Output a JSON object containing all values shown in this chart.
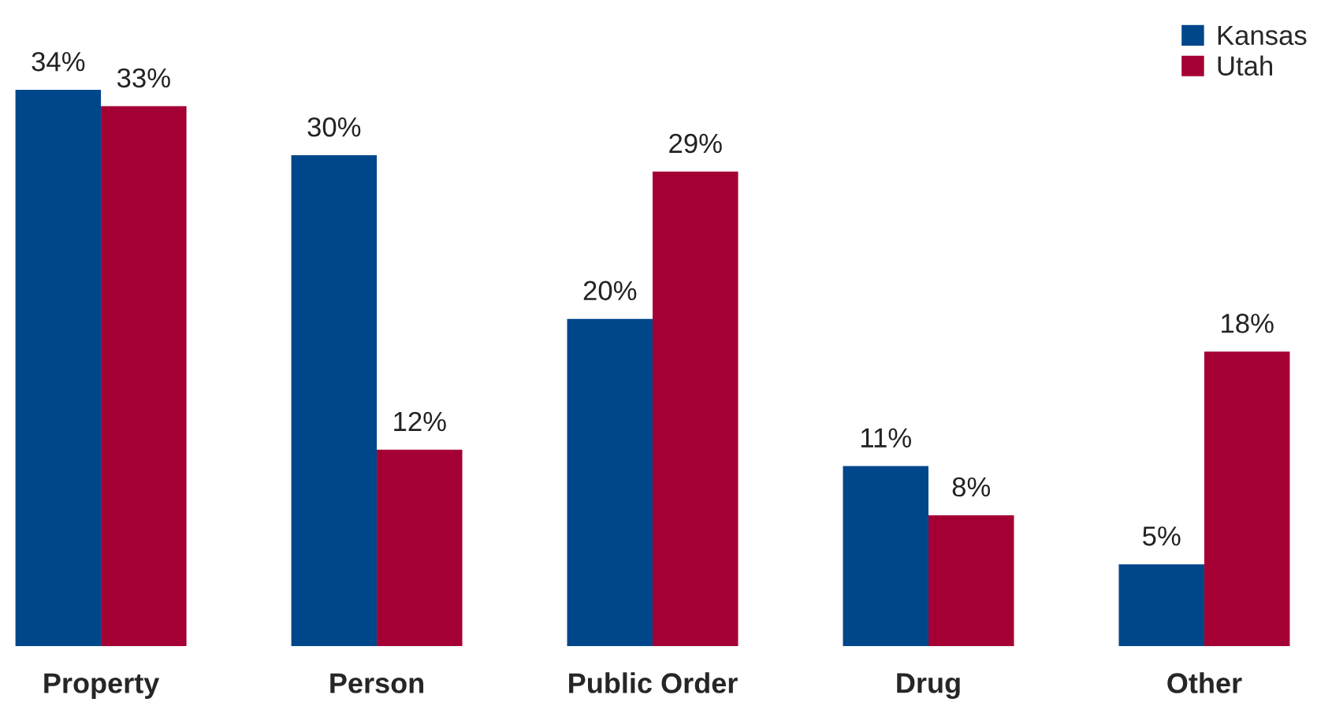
{
  "chart_data": {
    "type": "bar",
    "categories": [
      "Property",
      "Person",
      "Public Order",
      "Drug",
      "Other"
    ],
    "series": [
      {
        "name": "Kansas",
        "color": "#00468b",
        "values": [
          34,
          30,
          20,
          11,
          5
        ],
        "value_labels": [
          "34%",
          "30%",
          "20%",
          "11%",
          "5%"
        ]
      },
      {
        "name": "Utah",
        "color": "#a50034",
        "values": [
          33,
          12,
          29,
          8,
          18
        ],
        "value_labels": [
          "33%",
          "12%",
          "29%",
          "8%",
          "18%"
        ]
      }
    ],
    "legend": "top right",
    "grid": false
  }
}
